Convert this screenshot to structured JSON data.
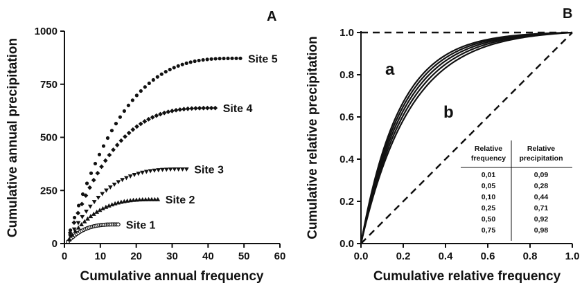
{
  "chart_data": [
    {
      "type": "scatter",
      "panel_label": "A",
      "xlabel": "Cumulative annual frequency",
      "ylabel": "Cumulative annual precipitation",
      "xlim": [
        0,
        60
      ],
      "ylim": [
        0,
        1000
      ],
      "xticks": [
        "0",
        "10",
        "20",
        "30",
        "40",
        "50",
        "60"
      ],
      "yticks": [
        "0",
        "250",
        "500",
        "750",
        "1000"
      ],
      "grid": false,
      "series": [
        {
          "name": "Site 1",
          "marker": "circle-open",
          "xmax": 15,
          "ymax": 90,
          "n": 30
        },
        {
          "name": "Site 2",
          "marker": "triangle-up",
          "xmax": 26,
          "ymax": 208,
          "n": 30
        },
        {
          "name": "Site 3",
          "marker": "triangle-down",
          "xmax": 34,
          "ymax": 350,
          "n": 30
        },
        {
          "name": "Site 4",
          "marker": "diamond",
          "xmax": 42,
          "ymax": 638,
          "n": 38
        },
        {
          "name": "Site 5",
          "marker": "circle",
          "xmax": 49,
          "ymax": 872,
          "n": 42
        }
      ]
    },
    {
      "type": "line",
      "panel_label": "B",
      "xlabel": "Cumulative relative frequency",
      "ylabel": "Cumulative relative precipitation",
      "xlim": [
        0,
        1.0
      ],
      "ylim": [
        0,
        1.0
      ],
      "xticks": [
        "0.0",
        "0.2",
        "0.4",
        "0.6",
        "0.8",
        "1.0"
      ],
      "yticks": [
        "0.0",
        "0.2",
        "0.4",
        "0.6",
        "0.8",
        "1.0"
      ],
      "grid": false,
      "region_labels": [
        "a",
        "b"
      ],
      "curves": [
        {
          "k": 4.3
        },
        {
          "k": 4.6
        },
        {
          "k": 4.9
        },
        {
          "k": 5.2
        },
        {
          "k": 5.5
        }
      ],
      "reference_lines": [
        {
          "style": "dashed",
          "from": [
            0,
            1.0
          ],
          "to": [
            1.0,
            1.0
          ]
        },
        {
          "style": "dashed",
          "from": [
            0,
            0
          ],
          "to": [
            1.0,
            1.0
          ]
        }
      ],
      "table": {
        "headers": [
          [
            "Relative",
            "frequency"
          ],
          [
            "Relative",
            "precipitation"
          ]
        ],
        "rows": [
          [
            "0,01",
            "0,09"
          ],
          [
            "0,05",
            "0,28"
          ],
          [
            "0,10",
            "0,44"
          ],
          [
            "0,25",
            "0,71"
          ],
          [
            "0,50",
            "0,92"
          ],
          [
            "0,75",
            "0,98"
          ]
        ]
      }
    }
  ]
}
